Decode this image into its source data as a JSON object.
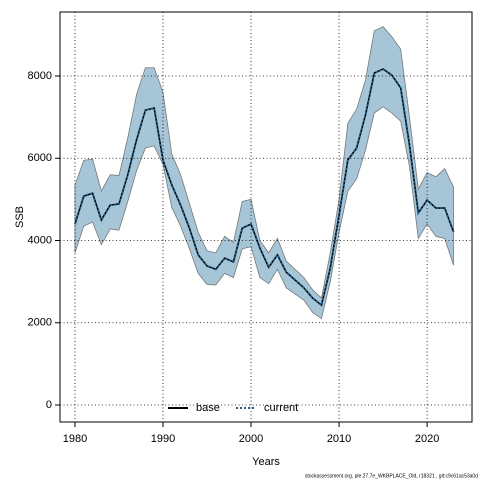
{
  "chart_data": {
    "type": "line",
    "xlabel": "Years",
    "ylabel": "SSB",
    "footer": "stockassessment.org, ple.27.7e_WKBPLACE_Old, r18321 , git:c9c61ac53a0d",
    "x": [
      1980,
      1981,
      1982,
      1983,
      1984,
      1985,
      1986,
      1987,
      1988,
      1989,
      1990,
      1991,
      1992,
      1993,
      1994,
      1995,
      1996,
      1997,
      1998,
      1999,
      2000,
      2001,
      2002,
      2003,
      2004,
      2005,
      2006,
      2007,
      2008,
      2009,
      2010,
      2011,
      2012,
      2013,
      2014,
      2015,
      2016,
      2017,
      2018,
      2019,
      2020,
      2021,
      2022,
      2023
    ],
    "band": {
      "color": "#a6c6d8",
      "upper": [
        5350,
        5950,
        5980,
        5200,
        5600,
        5580,
        6500,
        7550,
        8200,
        8200,
        7600,
        6100,
        5600,
        4900,
        4200,
        3750,
        3700,
        4100,
        3950,
        4950,
        5000,
        4000,
        3700,
        4050,
        3500,
        3300,
        3100,
        2800,
        2600,
        3700,
        5000,
        6850,
        7200,
        7900,
        9100,
        9200,
        8950,
        8650,
        7000,
        5250,
        5650,
        5550,
        5750,
        5300
      ],
      "lower": [
        3700,
        4350,
        4450,
        3900,
        4280,
        4250,
        4950,
        5700,
        6250,
        6300,
        5850,
        4800,
        4350,
        3800,
        3200,
        2930,
        2920,
        3200,
        3100,
        3800,
        3850,
        3100,
        2950,
        3300,
        2850,
        2700,
        2550,
        2250,
        2100,
        3000,
        4200,
        5200,
        5500,
        6200,
        7100,
        7250,
        7100,
        6900,
        5800,
        4050,
        4400,
        4100,
        4050,
        3400
      ]
    },
    "series": [
      {
        "name": "base",
        "color": "#000000",
        "dash": false,
        "values": [
          4400,
          5080,
          5150,
          4500,
          4860,
          4890,
          5600,
          6450,
          7170,
          7220,
          5950,
          5350,
          4860,
          4300,
          3650,
          3380,
          3300,
          3570,
          3480,
          4300,
          4400,
          3820,
          3350,
          3650,
          3230,
          3040,
          2850,
          2600,
          2430,
          3330,
          4620,
          5960,
          6250,
          7050,
          8070,
          8170,
          8020,
          7710,
          6320,
          4670,
          4980,
          4790,
          4790,
          4210
        ]
      },
      {
        "name": "current",
        "color": "#1f5f8a",
        "dash": true,
        "values": [
          4400,
          5080,
          5150,
          4500,
          4860,
          4890,
          5600,
          6450,
          7170,
          7220,
          5950,
          5350,
          4860,
          4300,
          3650,
          3380,
          3300,
          3570,
          3480,
          4300,
          4400,
          3820,
          3350,
          3650,
          3230,
          3040,
          2850,
          2600,
          2430,
          3330,
          4620,
          5960,
          6250,
          7050,
          8070,
          8170,
          8020,
          7710,
          6320,
          4670,
          4980,
          4790,
          4790,
          4210
        ]
      }
    ],
    "xlim": [
      1978.3,
      2025.1
    ],
    "ylim": [
      -413,
      9556
    ],
    "xticks": [
      1980,
      1990,
      2000,
      2010,
      2020
    ],
    "yticks": [
      0,
      2000,
      4000,
      6000,
      8000
    ],
    "grid": true,
    "legend": "bottom"
  }
}
